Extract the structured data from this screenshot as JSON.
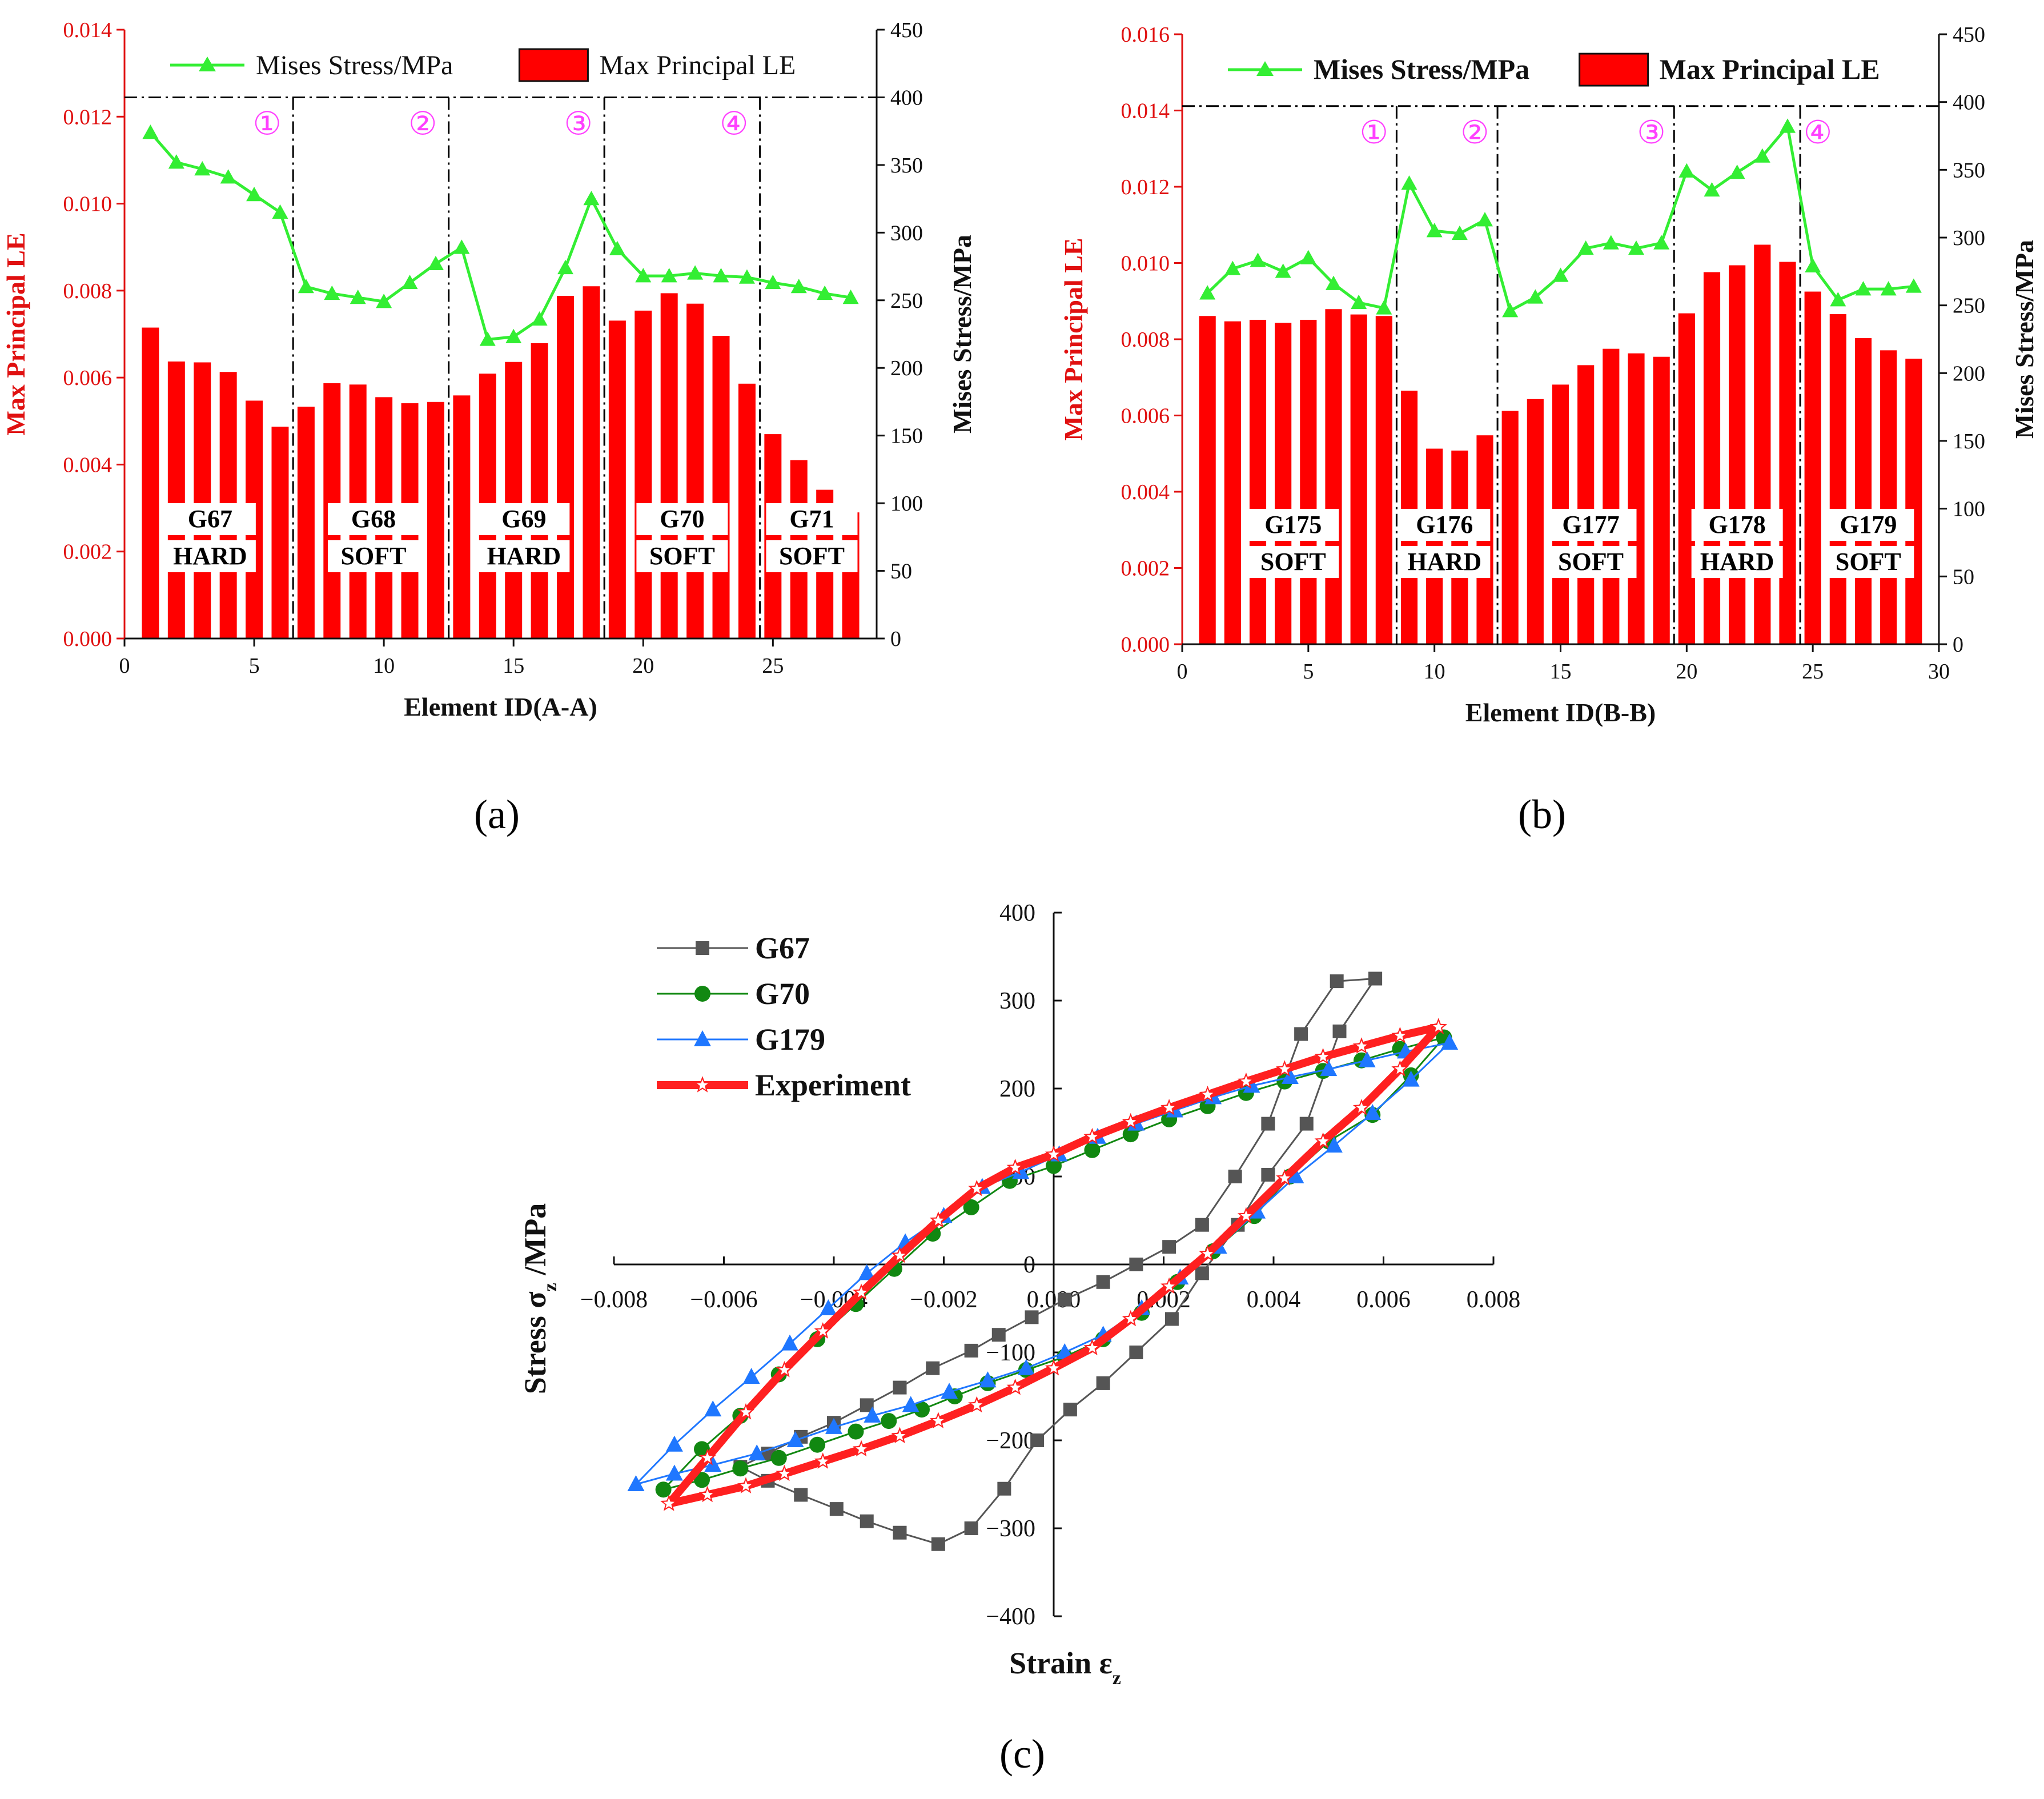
{
  "chart_data": [
    {
      "type": "bar",
      "panel": "(a)",
      "xlabel": "Element ID(A-A)",
      "ylabel_left": "Max Principal LE",
      "ylabel_right": "Mises Stress/MPa",
      "xlim": [
        0,
        29
      ],
      "ylim_left": [
        0,
        0.014
      ],
      "ylim_right": [
        0,
        450
      ],
      "x_ticks": [
        "0",
        "5",
        "10",
        "15",
        "20",
        "25"
      ],
      "x_tick_values": [
        0,
        5,
        10,
        15,
        20,
        25
      ],
      "y_left_ticks": [
        "0.000",
        "0.002",
        "0.004",
        "0.006",
        "0.008",
        "0.010",
        "0.012",
        "0.014"
      ],
      "y_left_tick_values": [
        0,
        0.002,
        0.004,
        0.006,
        0.008,
        0.01,
        0.012,
        0.014
      ],
      "y_right_ticks": [
        "0",
        "50",
        "100",
        "150",
        "200",
        "250",
        "300",
        "350",
        "400",
        "450"
      ],
      "y_right_tick_values": [
        0,
        50,
        100,
        150,
        200,
        250,
        300,
        350,
        400,
        450
      ],
      "legend": [
        "Mises Stress/MPa",
        "Max Principal LE"
      ],
      "bars": {
        "name": "Max Principal LE",
        "x": [
          1,
          2,
          3,
          4,
          5,
          6,
          7,
          8,
          9,
          10,
          11,
          12,
          13,
          14,
          15,
          16,
          17,
          18,
          19,
          20,
          21,
          22,
          23,
          24,
          25,
          26,
          27,
          28
        ],
        "values": [
          0.00715,
          0.00637,
          0.00635,
          0.00613,
          0.00547,
          0.00487,
          0.00533,
          0.00587,
          0.00584,
          0.00555,
          0.00541,
          0.00544,
          0.00559,
          0.00609,
          0.00636,
          0.00679,
          0.00788,
          0.0081,
          0.00731,
          0.00754,
          0.00794,
          0.0077,
          0.00696,
          0.00586,
          0.0047,
          0.0041,
          0.00342,
          0.0029
        ]
      },
      "line": {
        "name": "Mises Stress/MPa",
        "x": [
          1,
          2,
          3,
          4,
          5,
          6,
          7,
          8,
          9,
          10,
          11,
          12,
          13,
          14,
          15,
          16,
          17,
          18,
          19,
          20,
          21,
          22,
          23,
          24,
          25,
          26,
          27,
          28
        ],
        "values": [
          374,
          352,
          347,
          341,
          328,
          315,
          260,
          255,
          252,
          249,
          263,
          277,
          289,
          221,
          223,
          236,
          274,
          325,
          288,
          268,
          268,
          270,
          268,
          267,
          263,
          260,
          255,
          252
        ]
      },
      "dividers": [
        6.5,
        12.5,
        18.5,
        24.5
      ],
      "ref_line_right": 400,
      "region_labels": [
        "①",
        "②",
        "③",
        "④"
      ],
      "region_label_x": [
        5.5,
        11.5,
        17.5,
        23.5
      ],
      "group_labels": [
        {
          "name": "G67",
          "type": "HARD",
          "x": 3.3
        },
        {
          "name": "G68",
          "type": "SOFT",
          "x": 9.6
        },
        {
          "name": "G69",
          "type": "HARD",
          "x": 15.4
        },
        {
          "name": "G70",
          "type": "SOFT",
          "x": 21.5
        },
        {
          "name": "G71",
          "type": "SOFT",
          "x": 26.5
        }
      ],
      "caption": "(a)",
      "colors": {
        "bar": "#ff0000",
        "line": "#33ee33"
      }
    },
    {
      "type": "bar",
      "panel": "(b)",
      "xlabel": "Element ID(B-B)",
      "ylabel_left": "Max Principal LE",
      "ylabel_right": "Mises Stress/MPa",
      "xlim": [
        0,
        30
      ],
      "ylim_left": [
        0,
        0.016
      ],
      "ylim_right": [
        0,
        450
      ],
      "x_ticks": [
        "0",
        "5",
        "10",
        "15",
        "20",
        "25",
        "30"
      ],
      "x_tick_values": [
        0,
        5,
        10,
        15,
        20,
        25,
        30
      ],
      "y_left_ticks": [
        "0.000",
        "0.002",
        "0.004",
        "0.006",
        "0.008",
        "0.010",
        "0.012",
        "0.014",
        "0.016"
      ],
      "y_left_tick_values": [
        0,
        0.002,
        0.004,
        0.006,
        0.008,
        0.01,
        0.012,
        0.014,
        0.016
      ],
      "y_right_ticks": [
        "0",
        "50",
        "100",
        "150",
        "200",
        "250",
        "300",
        "350",
        "400",
        "450"
      ],
      "y_right_tick_values": [
        0,
        50,
        100,
        150,
        200,
        250,
        300,
        350,
        400,
        450
      ],
      "legend": [
        "Mises Stress/MPa",
        "Max Principal LE"
      ],
      "bars": {
        "name": "Max Principal LE",
        "x": [
          1,
          2,
          3,
          4,
          5,
          6,
          7,
          8,
          9,
          10,
          11,
          12,
          13,
          14,
          15,
          16,
          17,
          18,
          19,
          20,
          21,
          22,
          23,
          24,
          25,
          26,
          27,
          28,
          29
        ],
        "values": [
          0.00861,
          0.00847,
          0.00851,
          0.00843,
          0.00851,
          0.00879,
          0.00865,
          0.00861,
          0.00665,
          0.00513,
          0.00508,
          0.00548,
          0.00612,
          0.00643,
          0.00681,
          0.00732,
          0.00775,
          0.00763,
          0.00754,
          0.00868,
          0.00976,
          0.00994,
          0.01048,
          0.01003,
          0.00925,
          0.00866,
          0.00803,
          0.00771,
          0.00749
        ]
      },
      "line": {
        "name": "Mises Stress/MPa",
        "x": [
          1,
          2,
          3,
          4,
          5,
          6,
          7,
          8,
          9,
          10,
          11,
          12,
          13,
          14,
          15,
          16,
          17,
          18,
          19,
          20,
          21,
          22,
          23,
          24,
          25,
          26,
          27,
          28,
          29
        ],
        "values": [
          259,
          277,
          283,
          275,
          285,
          266,
          252,
          248,
          340,
          305,
          303,
          313,
          246,
          256,
          272,
          292,
          296,
          292,
          296,
          349,
          335,
          348,
          360,
          382,
          279,
          254,
          262,
          262,
          264
        ]
      },
      "dividers": [
        8.5,
        12.5,
        19.5,
        24.5
      ],
      "ref_line_right": 397,
      "region_labels": [
        "①",
        "②",
        "③",
        "④"
      ],
      "region_label_x": [
        7.6,
        11.6,
        18.6,
        25.2
      ],
      "group_labels": [
        {
          "name": "G175",
          "type": "SOFT",
          "x": 4.4
        },
        {
          "name": "G176",
          "type": "HARD",
          "x": 10.4
        },
        {
          "name": "G177",
          "type": "SOFT",
          "x": 16.2
        },
        {
          "name": "G178",
          "type": "HARD",
          "x": 22.0
        },
        {
          "name": "G179",
          "type": "SOFT",
          "x": 27.2
        }
      ],
      "caption": "(b)",
      "colors": {
        "bar": "#ff0000",
        "line": "#33ee33"
      }
    },
    {
      "type": "line",
      "panel": "(c)",
      "xlabel": "Strain ε",
      "xlabel_sub": "z",
      "ylabel": "Stress σ",
      "ylabel_sub": "z",
      "ylabel_unit": " /MPa",
      "xlim": [
        -0.008,
        0.008
      ],
      "ylim": [
        -400,
        400
      ],
      "x_ticks": [
        "−0.008",
        "−0.006",
        "−0.004",
        "−0.002",
        "0.000",
        "0.002",
        "0.004",
        "0.006",
        "0.008"
      ],
      "x_tick_values": [
        -0.008,
        -0.006,
        -0.004,
        -0.002,
        0,
        0.002,
        0.004,
        0.006,
        0.008
      ],
      "y_ticks": [
        "−400",
        "−300",
        "−200",
        "−100",
        "0",
        "100",
        "200",
        "300",
        "400"
      ],
      "y_tick_values": [
        -400,
        -300,
        -200,
        -100,
        0,
        100,
        200,
        300,
        400
      ],
      "caption": "(c)",
      "series": [
        {
          "name": "G67",
          "color": "#555555",
          "marker": "square",
          "x": [
            0.00585,
            0.0052,
            0.0046,
            0.0039,
            0.00335,
            0.0027,
            0.00215,
            0.0015,
            0.0009,
            0.0003,
            -0.0003,
            -0.0009,
            -0.0015,
            -0.0021,
            -0.0028,
            -0.0034,
            -0.00395,
            -0.0046,
            -0.0052,
            -0.0057,
            -0.0052,
            -0.0046,
            -0.004,
            -0.0034,
            -0.0028,
            -0.0022,
            -0.0015,
            -0.001,
            -0.0004,
            0.0002,
            0.0009,
            0.0015,
            0.0021,
            0.0027,
            0.0033,
            0.0039,
            0.0045,
            0.00515,
            0.00585
          ],
          "y": [
            325,
            265,
            160,
            102,
            45,
            -10,
            -62,
            -100,
            -135,
            -165,
            -200,
            -255,
            -300,
            -318,
            -305,
            -292,
            -278,
            -262,
            -246,
            -230,
            -215,
            -196,
            -180,
            -160,
            -140,
            -118,
            -98,
            -80,
            -60,
            -40,
            -20,
            0,
            20,
            45,
            100,
            160,
            262,
            322,
            325
          ]
        },
        {
          "name": "G70",
          "color": "#118811",
          "marker": "circle",
          "x": [
            0.0071,
            0.0065,
            0.0058,
            0.005,
            0.0043,
            0.00365,
            0.0029,
            0.00225,
            0.0016,
            0.0009,
            0.0002,
            -0.0005,
            -0.0012,
            -0.0018,
            -0.0024,
            -0.003,
            -0.0036,
            -0.0043,
            -0.005,
            -0.0057,
            -0.0064,
            -0.0071,
            -0.0064,
            -0.0057,
            -0.005,
            -0.0043,
            -0.0036,
            -0.0029,
            -0.0022,
            -0.0015,
            -0.0008,
            0.0,
            0.0007,
            0.0014,
            0.0021,
            0.0028,
            0.0035,
            0.0042,
            0.0049,
            0.0056,
            0.0063,
            0.0071
          ],
          "y": [
            258,
            215,
            170,
            140,
            100,
            55,
            15,
            -20,
            -55,
            -85,
            -105,
            -120,
            -135,
            -150,
            -165,
            -178,
            -190,
            -205,
            -220,
            -232,
            -245,
            -256,
            -210,
            -172,
            -125,
            -85,
            -45,
            -5,
            35,
            65,
            95,
            112,
            130,
            148,
            165,
            180,
            195,
            208,
            220,
            232,
            245,
            258
          ]
        },
        {
          "name": "G179",
          "color": "#1f77ff",
          "marker": "triangle",
          "x": [
            0.0072,
            0.0065,
            0.0058,
            0.0051,
            0.0044,
            0.0037,
            0.003,
            0.0023,
            0.0016,
            0.0009,
            0.0002,
            -0.0005,
            -0.0012,
            -0.0019,
            -0.0026,
            -0.0033,
            -0.004,
            -0.0047,
            -0.0054,
            -0.0062,
            -0.0069,
            -0.0076,
            -0.0069,
            -0.0062,
            -0.0055,
            -0.0048,
            -0.0041,
            -0.0034,
            -0.0027,
            -0.002,
            -0.0013,
            -0.0006,
            0.0001,
            0.0008,
            0.0015,
            0.0022,
            0.0029,
            0.0036,
            0.0043,
            0.005,
            0.0057,
            0.0064,
            0.0072
          ],
          "y": [
            252,
            210,
            172,
            135,
            100,
            60,
            20,
            -15,
            -50,
            -80,
            -100,
            -118,
            -132,
            -145,
            -160,
            -172,
            -185,
            -200,
            -215,
            -228,
            -238,
            -250,
            -205,
            -165,
            -128,
            -90,
            -50,
            -10,
            25,
            55,
            88,
            105,
            125,
            145,
            160,
            175,
            190,
            203,
            213,
            222,
            232,
            242,
            252
          ]
        },
        {
          "name": "Experiment",
          "color": "#ff2020",
          "marker": "star",
          "x": [
            0.007,
            0.0063,
            0.0056,
            0.0049,
            0.0042,
            0.0035,
            0.0028,
            0.0021,
            0.0014,
            0.0007,
            0.0,
            -0.0007,
            -0.0014,
            -0.0021,
            -0.0028,
            -0.0035,
            -0.0042,
            -0.0049,
            -0.0056,
            -0.0063,
            -0.007,
            -0.0063,
            -0.0056,
            -0.0049,
            -0.0042,
            -0.0035,
            -0.0028,
            -0.0021,
            -0.0014,
            -0.0007,
            0.0,
            0.0007,
            0.0014,
            0.0021,
            0.0028,
            0.0035,
            0.0042,
            0.0049,
            0.0056,
            0.0063,
            0.007
          ],
          "y": [
            270,
            222,
            178,
            140,
            98,
            55,
            12,
            -25,
            -62,
            -95,
            -118,
            -140,
            -160,
            -178,
            -195,
            -210,
            -224,
            -238,
            -252,
            -262,
            -272,
            -220,
            -168,
            -120,
            -76,
            -32,
            10,
            50,
            86,
            110,
            125,
            145,
            162,
            178,
            193,
            208,
            222,
            236,
            248,
            260,
            270
          ]
        }
      ]
    }
  ]
}
